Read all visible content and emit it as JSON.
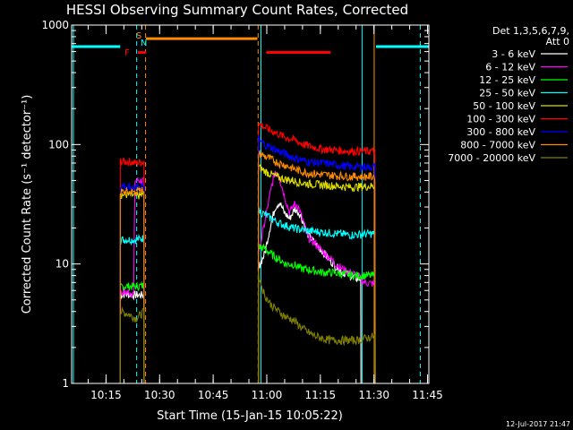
{
  "chart_data": {
    "type": "line",
    "title": "HESSI Observing Summary Count Rates, Corrected",
    "xlabel": "Start Time (15-Jan-15 10:05:22)",
    "ylabel": "Corrected Count Rate (s⁻¹ detector⁻¹)",
    "y_scale": "log",
    "ylim": [
      1,
      1000
    ],
    "y_ticks": [
      {
        "value": 1,
        "label": "1"
      },
      {
        "value": 10,
        "label": "10"
      },
      {
        "value": 100,
        "label": "100"
      },
      {
        "value": 1000,
        "label": "1000"
      }
    ],
    "x_unit": "minutes since 10:05:22",
    "xlim": [
      0,
      100
    ],
    "x_ticks": [
      {
        "value": 9.63,
        "label": "10:15"
      },
      {
        "value": 24.63,
        "label": "10:30"
      },
      {
        "value": 39.63,
        "label": "10:45"
      },
      {
        "value": 54.63,
        "label": "11:00"
      },
      {
        "value": 69.63,
        "label": "11:15"
      },
      {
        "value": 84.63,
        "label": "11:30"
      },
      {
        "value": 99.63,
        "label": "11:45"
      }
    ],
    "legend_header": [
      "Det 1,3,5,6,7,9,",
      "Att 0"
    ],
    "legend_position": "right",
    "series": [
      {
        "name": "3 - 6 keV",
        "color": "#ffffff"
      },
      {
        "name": "6 - 12 keV",
        "color": "#ff00ff"
      },
      {
        "name": "12 - 25 keV",
        "color": "#00ff00"
      },
      {
        "name": "25 - 50 keV",
        "color": "#00ffff"
      },
      {
        "name": "50 - 100 keV",
        "color": "#dcdc00"
      },
      {
        "name": "100 - 300 keV",
        "color": "#ff0000"
      },
      {
        "name": "300 - 800 keV",
        "color": "#0000ff"
      },
      {
        "name": "800 - 7000 keV",
        "color": "#ff8c00"
      },
      {
        "name": "7000 - 20000 keV",
        "color": "#808000"
      }
    ],
    "segments": [
      {
        "band": 0,
        "points": [
          [
            13.6,
            5.5
          ],
          [
            15,
            5.6
          ],
          [
            17.5,
            5.5
          ],
          [
            20.3,
            5.5
          ]
        ]
      },
      {
        "band": 1,
        "points": [
          [
            13.6,
            5.8
          ],
          [
            16,
            5.8
          ],
          [
            17.5,
            5.6
          ],
          [
            17.6,
            50
          ],
          [
            20.3,
            50
          ]
        ]
      },
      {
        "band": 2,
        "points": [
          [
            13.6,
            6.5
          ],
          [
            16,
            6.5
          ],
          [
            18,
            6.5
          ],
          [
            20.3,
            6.6
          ]
        ]
      },
      {
        "band": 3,
        "points": [
          [
            13.6,
            16
          ],
          [
            16,
            16
          ],
          [
            18,
            16
          ],
          [
            20.3,
            16.5
          ]
        ]
      },
      {
        "band": 4,
        "points": [
          [
            13.6,
            38
          ],
          [
            16,
            38
          ],
          [
            18,
            37
          ],
          [
            20.3,
            38
          ]
        ]
      },
      {
        "band": 5,
        "points": [
          [
            13.6,
            72
          ],
          [
            16,
            72
          ],
          [
            18,
            70
          ],
          [
            20.3,
            72
          ]
        ]
      },
      {
        "band": 6,
        "points": [
          [
            13.6,
            45
          ],
          [
            16,
            45
          ],
          [
            18,
            43
          ],
          [
            20.3,
            45
          ]
        ]
      },
      {
        "band": 7,
        "points": [
          [
            13.6,
            40
          ],
          [
            16,
            40
          ],
          [
            18,
            40
          ],
          [
            20.3,
            42
          ]
        ]
      },
      {
        "band": 8,
        "points": [
          [
            13.6,
            4.0
          ],
          [
            16,
            3.8
          ],
          [
            18,
            3.5
          ],
          [
            20.3,
            4.0
          ]
        ]
      },
      {
        "band": 0,
        "points": [
          [
            52.3,
            9.5
          ],
          [
            54,
            12
          ],
          [
            55.5,
            20
          ],
          [
            57,
            30
          ],
          [
            58.2,
            33
          ],
          [
            59.5,
            27
          ],
          [
            61,
            24
          ],
          [
            62.5,
            29
          ],
          [
            64,
            26
          ],
          [
            66,
            18
          ],
          [
            68,
            15
          ],
          [
            70,
            13
          ],
          [
            72,
            11
          ],
          [
            74,
            9.5
          ],
          [
            76,
            8.5
          ],
          [
            78,
            8
          ],
          [
            80,
            7.5
          ],
          [
            81,
            7.5
          ]
        ]
      },
      {
        "band": 1,
        "points": [
          [
            52.3,
            12
          ],
          [
            54,
            22
          ],
          [
            56,
            45
          ],
          [
            57,
            60
          ],
          [
            58,
            55
          ],
          [
            59.5,
            38
          ],
          [
            61,
            27
          ],
          [
            62.5,
            32
          ],
          [
            63.5,
            30
          ],
          [
            65,
            22
          ],
          [
            66,
            17
          ],
          [
            68,
            15
          ],
          [
            70,
            13
          ],
          [
            72,
            11.5
          ],
          [
            74,
            10
          ],
          [
            76,
            9
          ],
          [
            78,
            8.5
          ],
          [
            80,
            8
          ],
          [
            82,
            7
          ],
          [
            85,
            6.8
          ]
        ]
      },
      {
        "band": 2,
        "points": [
          [
            52.3,
            14
          ],
          [
            54,
            13.5
          ],
          [
            56,
            12
          ],
          [
            58,
            11
          ],
          [
            60,
            10
          ],
          [
            62,
            10
          ],
          [
            64,
            9.2
          ],
          [
            66,
            9
          ],
          [
            68,
            8.8
          ],
          [
            70,
            8.5
          ],
          [
            73,
            8.5
          ],
          [
            76,
            8.2
          ],
          [
            80,
            8
          ],
          [
            85,
            8
          ]
        ]
      },
      {
        "band": 3,
        "points": [
          [
            52.3,
            28
          ],
          [
            54,
            26
          ],
          [
            56,
            24
          ],
          [
            58,
            22
          ],
          [
            60,
            21
          ],
          [
            62,
            20
          ],
          [
            64,
            19.5
          ],
          [
            66,
            19
          ],
          [
            70,
            18.5
          ],
          [
            74,
            18
          ],
          [
            78,
            17.5
          ],
          [
            85,
            18
          ]
        ]
      },
      {
        "band": 4,
        "points": [
          [
            52.3,
            65
          ],
          [
            54,
            60
          ],
          [
            56,
            56
          ],
          [
            58,
            53
          ],
          [
            60,
            51
          ],
          [
            62,
            50
          ],
          [
            64,
            48
          ],
          [
            66,
            47
          ],
          [
            70,
            46
          ],
          [
            74,
            45
          ],
          [
            78,
            44
          ],
          [
            85,
            45
          ]
        ]
      },
      {
        "band": 5,
        "points": [
          [
            52.3,
            150
          ],
          [
            54,
            140
          ],
          [
            56,
            130
          ],
          [
            58,
            122
          ],
          [
            60,
            115
          ],
          [
            62,
            110
          ],
          [
            64,
            103
          ],
          [
            66,
            98
          ],
          [
            68,
            95
          ],
          [
            70,
            92
          ],
          [
            74,
            90
          ],
          [
            78,
            88
          ],
          [
            85,
            88
          ]
        ]
      },
      {
        "band": 6,
        "points": [
          [
            52.3,
            110
          ],
          [
            54,
            100
          ],
          [
            56,
            94
          ],
          [
            58,
            88
          ],
          [
            60,
            83
          ],
          [
            62,
            78
          ],
          [
            64,
            75
          ],
          [
            66,
            72
          ],
          [
            70,
            70
          ],
          [
            74,
            68
          ],
          [
            78,
            65
          ],
          [
            85,
            65
          ]
        ]
      },
      {
        "band": 7,
        "points": [
          [
            52.3,
            85
          ],
          [
            54,
            80
          ],
          [
            56,
            75
          ],
          [
            58,
            70
          ],
          [
            60,
            67
          ],
          [
            62,
            63
          ],
          [
            64,
            60
          ],
          [
            66,
            58
          ],
          [
            70,
            56
          ],
          [
            74,
            55
          ],
          [
            78,
            54
          ],
          [
            85,
            54
          ]
        ]
      },
      {
        "band": 8,
        "points": [
          [
            52.3,
            8
          ],
          [
            54,
            5.5
          ],
          [
            56,
            4.5
          ],
          [
            58,
            4
          ],
          [
            60,
            3.6
          ],
          [
            62,
            3.4
          ],
          [
            64,
            3.0
          ],
          [
            66,
            2.7
          ],
          [
            68,
            2.5
          ],
          [
            72,
            2.3
          ],
          [
            76,
            2.3
          ],
          [
            80,
            2.3
          ],
          [
            85,
            2.5
          ]
        ]
      }
    ],
    "attenuator_state": [
      {
        "start": 0,
        "end": 13.6,
        "value": 660
      },
      {
        "start": 85.2,
        "end": 100,
        "value": 660
      }
    ],
    "flags": [
      {
        "label": "S",
        "color": "#ff8c00",
        "start": 20.8,
        "end": 52,
        "value": 770
      },
      {
        "label": "F",
        "color": "#ff0000",
        "start": 18.5,
        "end": 20.8,
        "value": 590
      },
      {
        "label": "",
        "color": "#ff0000",
        "start": 54.5,
        "end": 72.5,
        "value": 590
      }
    ],
    "flag_letters": [
      "S",
      "F",
      "N"
    ],
    "vertical_lines": [
      {
        "x": 0.5,
        "color": "#00ffff",
        "dashed": false
      },
      {
        "x": 18.2,
        "color": "#00ffff",
        "dashed": true
      },
      {
        "x": 20.7,
        "color": "#ff8c00",
        "dashed": true
      },
      {
        "x": 52.2,
        "color": "#ff8c00",
        "dashed": true
      },
      {
        "x": 53.0,
        "color": "#00ffff",
        "dashed": false
      },
      {
        "x": 81.3,
        "color": "#00ffff",
        "dashed": false
      },
      {
        "x": 84.7,
        "color": "#ff8c00",
        "dashed": false
      },
      {
        "x": 97.6,
        "color": "#00ffff",
        "dashed": true
      }
    ],
    "footer_stamp": "12-Jul-2017 21:47"
  }
}
